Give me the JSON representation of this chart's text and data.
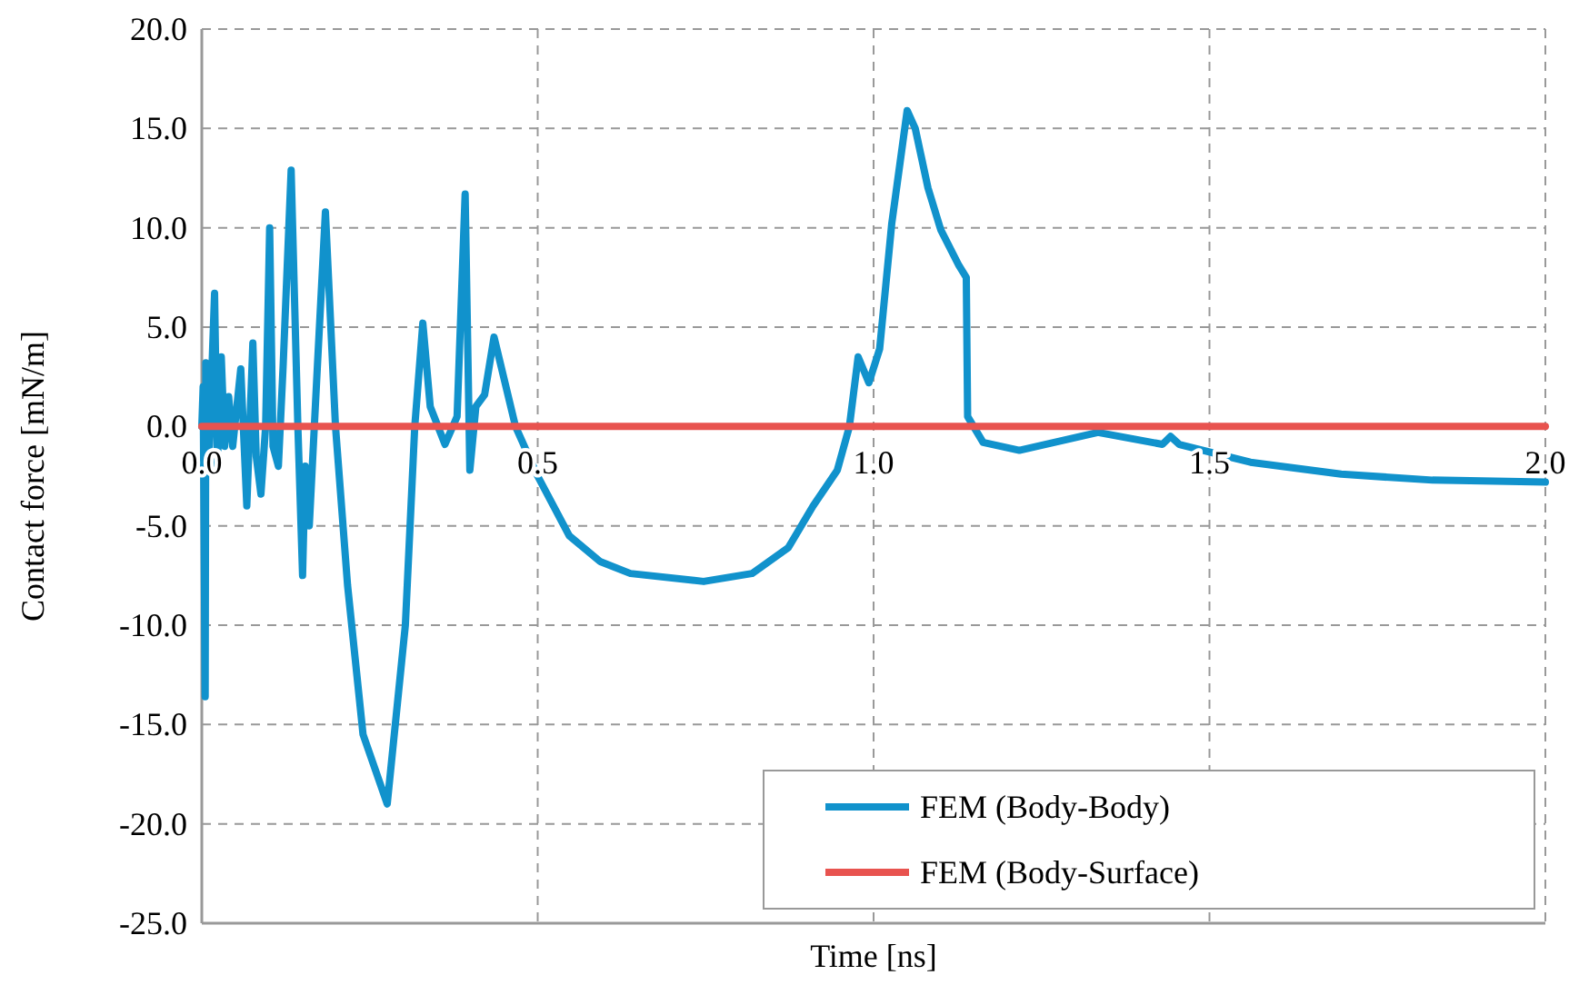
{
  "chart_data": {
    "type": "line",
    "xlabel": "Time [ns]",
    "ylabel": "Contact force [mN/m]",
    "xlim": [
      0,
      2
    ],
    "ylim": [
      -25,
      20
    ],
    "xticks": [
      {
        "value": 0,
        "label": "0.0"
      },
      {
        "value": 0.5,
        "label": "0.5"
      },
      {
        "value": 1,
        "label": "1.0"
      },
      {
        "value": 1.5,
        "label": "1.5"
      },
      {
        "value": 2,
        "label": "2.0"
      }
    ],
    "yticks": [
      {
        "value": -25,
        "label": "-25.0"
      },
      {
        "value": -20,
        "label": "-20.0"
      },
      {
        "value": -15,
        "label": "-15.0"
      },
      {
        "value": -10,
        "label": "-10.0"
      },
      {
        "value": -5,
        "label": "-5.0"
      },
      {
        "value": 0,
        "label": "0.0"
      },
      {
        "value": 5,
        "label": "5.0"
      },
      {
        "value": 10,
        "label": "10.0"
      },
      {
        "value": 15,
        "label": "15.0"
      },
      {
        "value": 20,
        "label": "20.0"
      }
    ],
    "grid": true,
    "legend": "bottom right",
    "marker": "none",
    "line_style": "solid",
    "series": [
      {
        "name": "FEM (Body-Body)",
        "color": "#1192cc",
        "x": [
          0,
          0.002,
          0.005,
          0.006,
          0.011,
          0.019,
          0.023,
          0.029,
          0.034,
          0.04,
          0.046,
          0.058,
          0.067,
          0.076,
          0.081,
          0.088,
          0.095,
          0.101,
          0.106,
          0.114,
          0.121,
          0.133,
          0.143,
          0.15,
          0.154,
          0.16,
          0.172,
          0.184,
          0.199,
          0.217,
          0.24,
          0.276,
          0.303,
          0.317,
          0.329,
          0.34,
          0.362,
          0.38,
          0.392,
          0.399,
          0.408,
          0.421,
          0.435,
          0.467,
          0.5,
          0.547,
          0.593,
          0.638,
          0.747,
          0.819,
          0.873,
          0.91,
          0.946,
          0.964,
          0.977,
          0.993,
          1.009,
          1.027,
          1.05,
          1.062,
          1.081,
          1.1,
          1.127,
          1.138,
          1.14,
          1.163,
          1.217,
          1.334,
          1.43,
          1.442,
          1.455,
          1.561,
          1.696,
          1.832,
          2.0
        ],
        "values": [
          0,
          2,
          -13.6,
          3.2,
          -1,
          6.7,
          -2,
          3.5,
          -1,
          1.5,
          -1,
          2.9,
          -4,
          4.2,
          -1.5,
          -3.4,
          0,
          10,
          -1,
          -2,
          3,
          12.9,
          0,
          -7.5,
          -2,
          -5,
          3,
          10.8,
          0,
          -8,
          -15.5,
          -19,
          -10,
          0,
          5.2,
          1,
          -0.9,
          0.5,
          11.7,
          -2.2,
          1,
          1.6,
          4.5,
          0,
          -2.5,
          -5.5,
          -6.8,
          -7.4,
          -7.8,
          -7.4,
          -6.1,
          -4,
          -2.2,
          0,
          3.5,
          2.2,
          3.9,
          10.2,
          15.9,
          15,
          12,
          9.9,
          8.1,
          7.5,
          0.5,
          -0.8,
          -1.2,
          -0.3,
          -0.9,
          -0.5,
          -0.9,
          -1.8,
          -2.4,
          -2.7,
          -2.8
        ]
      },
      {
        "name": "FEM (Body-Surface)",
        "color": "#e8534f",
        "x": [
          0,
          2
        ],
        "values": [
          0,
          0
        ]
      }
    ]
  }
}
